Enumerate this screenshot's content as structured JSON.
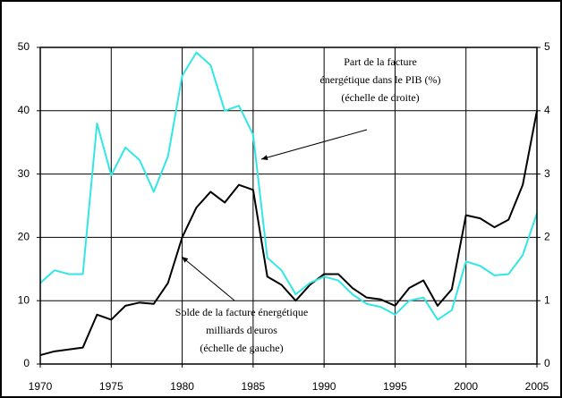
{
  "chart_data": {
    "type": "line",
    "x": [
      1970,
      1971,
      1972,
      1973,
      1974,
      1975,
      1976,
      1977,
      1978,
      1979,
      1980,
      1981,
      1982,
      1983,
      1984,
      1985,
      1986,
      1987,
      1988,
      1989,
      1990,
      1991,
      1992,
      1993,
      1994,
      1995,
      1996,
      1997,
      1998,
      1999,
      2000,
      2001,
      2002,
      2003,
      2004,
      2005
    ],
    "series": [
      {
        "name": "Solde de la facture énergétique milliards d'euros (échelle de gauche)",
        "color": "#000000",
        "values": [
          1.4,
          2.0,
          2.3,
          2.6,
          7.8,
          7.0,
          9.2,
          9.7,
          9.5,
          12.8,
          20,
          24.7,
          27.2,
          25.5,
          28.3,
          27.5,
          13.8,
          12.5,
          10,
          12.5,
          14.2,
          14.2,
          12,
          10.5,
          10.2,
          9.2,
          12,
          13.2,
          9.2,
          11.8,
          23.5,
          23,
          21.6,
          22.8,
          28.3,
          40
        ]
      },
      {
        "name": "Part de la facture énergétique dans le PIB (%) (échelle de droite)",
        "color": "#33e6e6",
        "axis": "y2",
        "values": [
          1.28,
          1.48,
          1.42,
          1.42,
          3.8,
          2.98,
          3.42,
          3.22,
          2.72,
          3.28,
          4.55,
          4.92,
          4.72,
          4.0,
          4.08,
          3.62,
          1.68,
          1.48,
          1.1,
          1.28,
          1.38,
          1.32,
          1.1,
          0.95,
          0.9,
          0.78,
          1.0,
          1.05,
          0.7,
          0.85,
          1.62,
          1.55,
          1.4,
          1.42,
          1.72,
          2.38
        ]
      }
    ],
    "xlim": [
      1970,
      2005
    ],
    "xticks": [
      1970,
      1975,
      1980,
      1985,
      1990,
      1995,
      2000,
      2005
    ],
    "ylim": [
      0,
      50
    ],
    "yticks": [
      0,
      10,
      20,
      30,
      40,
      50
    ],
    "y2lim": [
      0,
      5
    ],
    "y2ticks": [
      0,
      1,
      2,
      3,
      4,
      5
    ],
    "grid": true,
    "annotations": [
      [
        "Part de la facture",
        "énergétique dans le PIB (%)",
        "(échelle de droite)"
      ],
      [
        "Solde de la facture énergétique",
        "milliards d'euros",
        "(échelle de gauche)"
      ]
    ]
  }
}
